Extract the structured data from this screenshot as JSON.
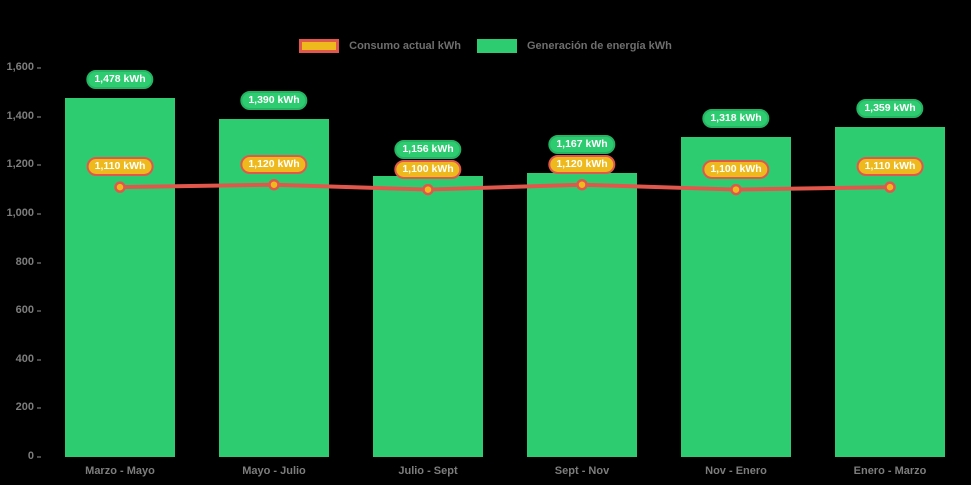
{
  "chart_data": {
    "type": "bar",
    "title": "",
    "categories": [
      "Marzo - Mayo",
      "Mayo - Julio",
      "Julio - Sept",
      "Sept - Nov",
      "Nov - Enero",
      "Enero - Marzo"
    ],
    "series": [
      {
        "name": "Generación de energía kWh",
        "type": "bar",
        "color": "#2ecc71",
        "values": [
          1478,
          1390,
          1156,
          1167,
          1318,
          1359
        ],
        "value_labels": [
          "1,478 kWh",
          "1,390 kWh",
          "1,156 kWh",
          "1,167 kWh",
          "1,318 kWh",
          "1,359 kWh"
        ]
      },
      {
        "name": "Consumo actual kWh",
        "type": "line",
        "color": "#e2574c",
        "marker_color": "#eeb91d",
        "values": [
          1110,
          1120,
          1100,
          1120,
          1100,
          1110
        ],
        "value_labels": [
          "1,110 kWh",
          "1,120 kWh",
          "1,100 kWh",
          "1,120 kWh",
          "1,100 kWh",
          "1,110 kWh"
        ]
      }
    ],
    "xlabel": "",
    "ylabel": "",
    "ylim": [
      0,
      1600
    ],
    "ytick_step": 200,
    "ytick_labels": [
      "0",
      "200",
      "400",
      "600",
      "800",
      "1,000",
      "1,200",
      "1,400",
      "1,600"
    ],
    "grid": false,
    "legend_position": "top",
    "background_color": "#000000"
  },
  "legend": {
    "items": [
      {
        "label": "Consumo actual kWh"
      },
      {
        "label": "Generación de energía kWh"
      }
    ]
  },
  "colors": {
    "bar_green": "#2ecc71",
    "pill_green_border": "#26b463",
    "line_red": "#e2574c",
    "marker_gold": "#eeb91d",
    "axis_label": "#7d7d7d",
    "legend_label": "#6e6e6e",
    "background": "#000000",
    "pill_text": "#ffffff"
  }
}
